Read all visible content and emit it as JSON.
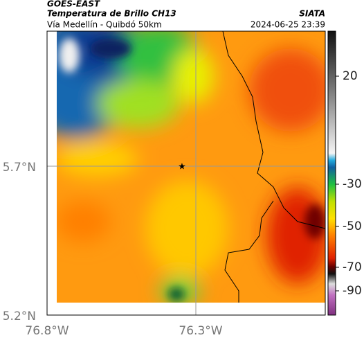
{
  "header": {
    "title": "GOES-EAST",
    "subtitle": "Temperatura de Brillo CH13",
    "region": "Vía Medellín - Quibdó 50km",
    "source": "SIATA",
    "timestamp": "2024-06-25 23:39"
  },
  "axes": {
    "y_labels": [
      "5.7°N",
      "5.2°N"
    ],
    "x_labels": [
      "76.8°W",
      "76.3°W"
    ]
  },
  "colorbar": {
    "ticks": [
      20,
      -30,
      -50,
      -70,
      -90
    ]
  }
}
